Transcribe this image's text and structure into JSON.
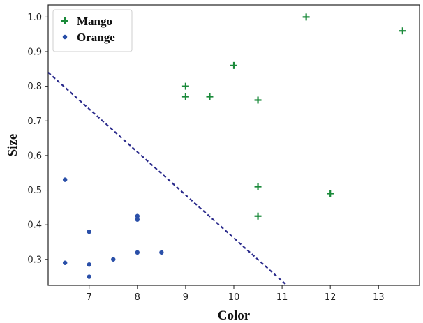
{
  "chart_data": {
    "type": "scatter",
    "xlabel": "Color",
    "ylabel": "Size",
    "xlim": [
      6.15,
      13.85
    ],
    "ylim": [
      0.225,
      1.035
    ],
    "x_ticks": [
      7,
      8,
      9,
      10,
      11,
      12,
      13
    ],
    "y_ticks": [
      0.3,
      0.4,
      0.5,
      0.6,
      0.7,
      0.8,
      0.9,
      1.0
    ],
    "x_tick_labels": [
      "7",
      "8",
      "9",
      "10",
      "11",
      "12",
      "13"
    ],
    "y_tick_labels": [
      "0.3",
      "0.4",
      "0.5",
      "0.6",
      "0.7",
      "0.8",
      "0.9",
      "1.0"
    ],
    "grid": false,
    "legend_position": "top-left",
    "series": [
      {
        "name": "Mango",
        "marker": "plus",
        "color": "#1a8a3a",
        "points": [
          {
            "x": 9.0,
            "y": 0.8
          },
          {
            "x": 9.0,
            "y": 0.77
          },
          {
            "x": 9.5,
            "y": 0.77
          },
          {
            "x": 10.0,
            "y": 0.86
          },
          {
            "x": 10.5,
            "y": 0.76
          },
          {
            "x": 11.5,
            "y": 1.0
          },
          {
            "x": 13.5,
            "y": 0.96
          },
          {
            "x": 10.5,
            "y": 0.51
          },
          {
            "x": 10.5,
            "y": 0.425
          },
          {
            "x": 12.0,
            "y": 0.49
          }
        ]
      },
      {
        "name": "Orange",
        "marker": "circle",
        "color": "#2a4fa8",
        "points": [
          {
            "x": 6.5,
            "y": 0.53
          },
          {
            "x": 6.5,
            "y": 0.29
          },
          {
            "x": 7.0,
            "y": 0.38
          },
          {
            "x": 7.0,
            "y": 0.285
          },
          {
            "x": 7.0,
            "y": 0.25
          },
          {
            "x": 7.5,
            "y": 0.3
          },
          {
            "x": 8.0,
            "y": 0.425
          },
          {
            "x": 8.0,
            "y": 0.415
          },
          {
            "x": 8.0,
            "y": 0.32
          },
          {
            "x": 8.5,
            "y": 0.32
          }
        ]
      }
    ],
    "decision_boundary": {
      "style": "dashed",
      "color": "#2b2b8c",
      "points": [
        {
          "x": 6.15,
          "y": 0.84
        },
        {
          "x": 11.1,
          "y": 0.225
        }
      ]
    }
  }
}
